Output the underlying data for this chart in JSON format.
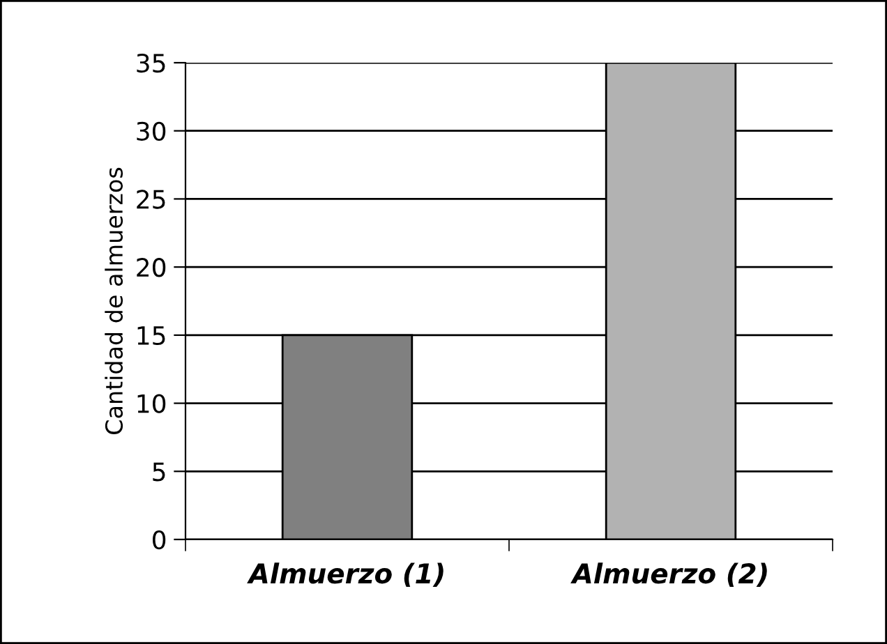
{
  "chart_data": {
    "type": "bar",
    "ylabel": "Cantidad de almuerzos",
    "categories": [
      "Almuerzo (1)",
      "Almuerzo (2)"
    ],
    "values": [
      15,
      35
    ],
    "colors": [
      "#808080",
      "#b2b2b2"
    ],
    "ylim": [
      0,
      35
    ],
    "yticks": [
      0,
      5,
      10,
      15,
      20,
      25,
      30,
      35
    ],
    "grid": "y",
    "legend": false
  }
}
